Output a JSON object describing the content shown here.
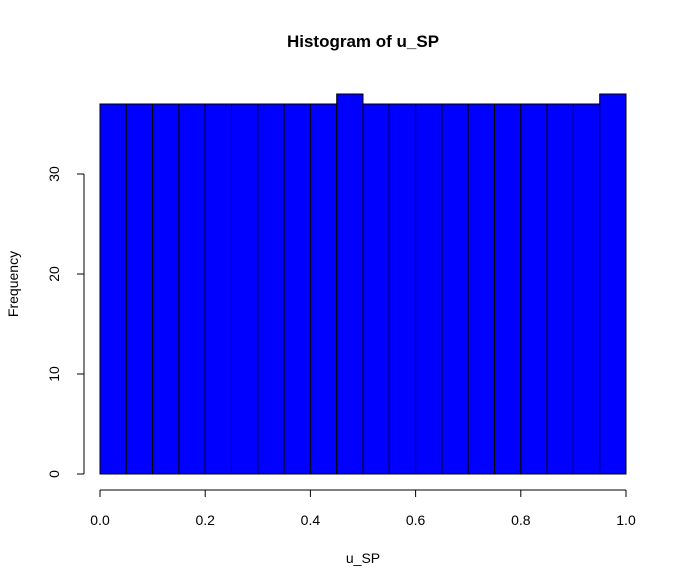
{
  "chart_data": {
    "type": "bar",
    "title": "Histogram of u_SP",
    "xlabel": "u_SP",
    "ylabel": "Frequency",
    "bar_color": "#0000ff",
    "bins": [
      {
        "start": 0.0,
        "end": 0.05,
        "count": 37
      },
      {
        "start": 0.05,
        "end": 0.1,
        "count": 37
      },
      {
        "start": 0.1,
        "end": 0.15,
        "count": 37
      },
      {
        "start": 0.15,
        "end": 0.2,
        "count": 37
      },
      {
        "start": 0.2,
        "end": 0.25,
        "count": 37
      },
      {
        "start": 0.25,
        "end": 0.3,
        "count": 37
      },
      {
        "start": 0.3,
        "end": 0.35,
        "count": 37
      },
      {
        "start": 0.35,
        "end": 0.4,
        "count": 37
      },
      {
        "start": 0.4,
        "end": 0.45,
        "count": 37
      },
      {
        "start": 0.45,
        "end": 0.5,
        "count": 38
      },
      {
        "start": 0.5,
        "end": 0.55,
        "count": 37
      },
      {
        "start": 0.55,
        "end": 0.6,
        "count": 37
      },
      {
        "start": 0.6,
        "end": 0.65,
        "count": 37
      },
      {
        "start": 0.65,
        "end": 0.7,
        "count": 37
      },
      {
        "start": 0.7,
        "end": 0.75,
        "count": 37
      },
      {
        "start": 0.75,
        "end": 0.8,
        "count": 37
      },
      {
        "start": 0.8,
        "end": 0.85,
        "count": 37
      },
      {
        "start": 0.85,
        "end": 0.9,
        "count": 37
      },
      {
        "start": 0.9,
        "end": 0.95,
        "count": 37
      },
      {
        "start": 0.95,
        "end": 1.0,
        "count": 38
      }
    ],
    "xlim": [
      0,
      1
    ],
    "ylim": [
      0,
      38
    ],
    "xticks": [
      0.0,
      0.2,
      0.4,
      0.6,
      0.8,
      1.0
    ],
    "xtick_labels": [
      "0.0",
      "0.2",
      "0.4",
      "0.6",
      "0.8",
      "1.0"
    ],
    "yticks": [
      0,
      10,
      20,
      30
    ],
    "ytick_labels": [
      "0",
      "10",
      "20",
      "30"
    ],
    "grid": false,
    "legend": "none"
  }
}
